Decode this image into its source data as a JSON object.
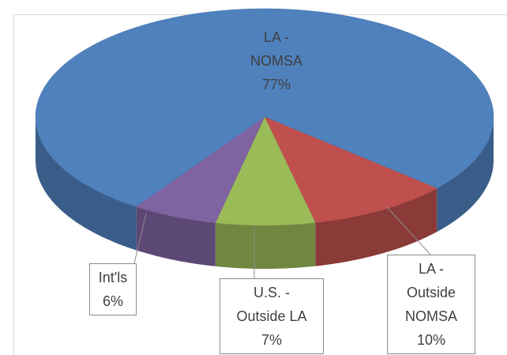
{
  "chart_data": {
    "type": "pie",
    "categories": [
      "LA - NOMSA",
      "LA - Outside NOMSA",
      "U.S. - Outside LA",
      "Int'ls"
    ],
    "values": [
      77,
      10,
      7,
      6
    ],
    "value_labels": [
      "77%",
      "10%",
      "7%",
      "6%"
    ],
    "colors": [
      "#4f81bd",
      "#c0504d",
      "#9bbb59",
      "#8064a2"
    ],
    "three_d": true
  }
}
